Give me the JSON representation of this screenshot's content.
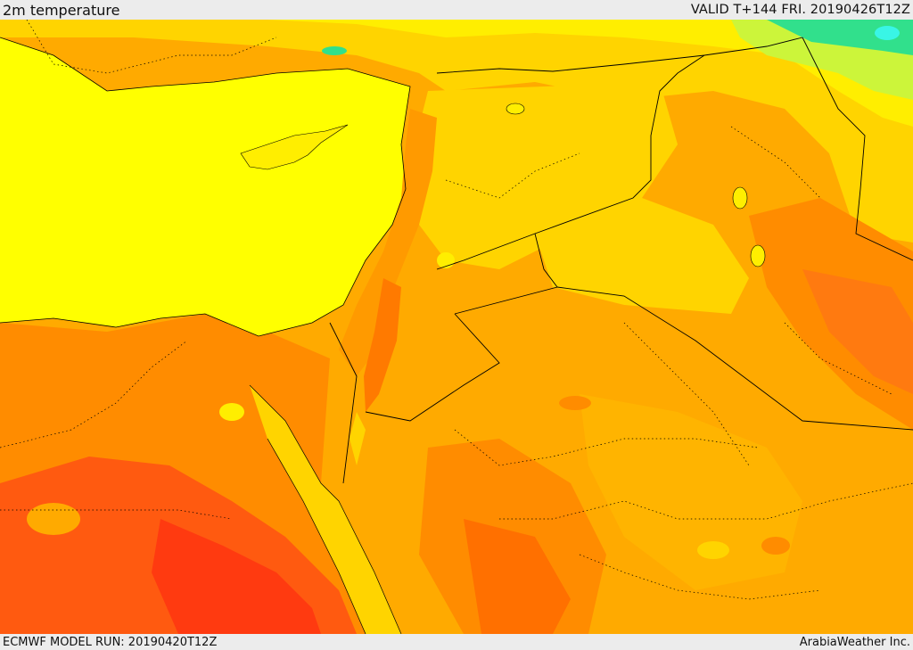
{
  "header": {
    "title": "2m temperature",
    "valid": "VALID T+144 FRI. 20190426T12Z"
  },
  "footer": {
    "model_run": "ECMWF MODEL RUN: 20190420T12Z",
    "credit": "ArabiaWeather Inc."
  },
  "map": {
    "field": "2m temperature",
    "colors": {
      "cool_green": "#31e08c",
      "cyan": "#39f5e6",
      "lime": "#ccf53a",
      "yellow": "#ffff00",
      "light_orange": "#ffd400",
      "orange": "#ffaa00",
      "dark_orange": "#ff8c00",
      "red_orange": "#ff5a10",
      "red": "#ff3a10",
      "borders": "#000000"
    }
  }
}
